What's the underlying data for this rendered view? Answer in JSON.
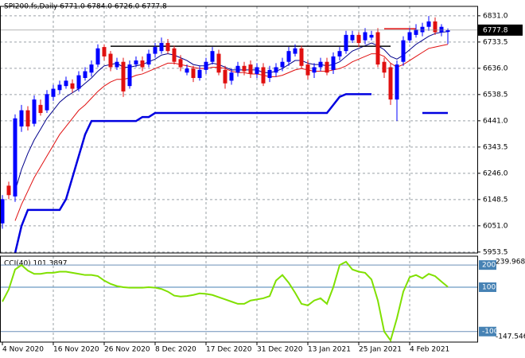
{
  "chart_data": [
    {
      "type": "candlestick",
      "title": "SPI200.fs,Daily  6771.0 6784.0 6726.0 6777.8",
      "up_color": "#0000ff",
      "down_color": "#e01010",
      "categories": [
        "4 Nov 2020",
        null,
        null,
        null,
        null,
        null,
        null,
        null,
        "16 Nov 2020",
        null,
        null,
        null,
        null,
        null,
        null,
        null,
        "26 Nov 2020",
        null,
        null,
        null,
        null,
        null,
        null,
        null,
        "8 Dec 2020",
        null,
        null,
        null,
        null,
        null,
        null,
        null,
        "17 Dec 2020",
        null,
        null,
        null,
        null,
        null,
        null,
        null,
        "31 Dec 2020",
        null,
        null,
        null,
        null,
        null,
        null,
        null,
        "13 Jan 2021",
        null,
        null,
        null,
        null,
        null,
        null,
        null,
        "25 Jan 2021",
        null,
        null,
        null,
        null,
        null,
        null,
        null,
        "4 Feb 2021",
        null,
        null,
        null,
        null,
        null,
        null
      ],
      "open": [
        6060,
        6200,
        6160,
        6420,
        6480,
        6430,
        6500,
        6480,
        6530,
        6555,
        6570,
        6580,
        6560,
        6600,
        6620,
        6650,
        6715,
        6690,
        6640,
        6660,
        6570,
        6650,
        6665,
        6650,
        6690,
        6700,
        6730,
        6710,
        6670,
        6620,
        6635,
        6600,
        6630,
        6660,
        6690,
        6630,
        6590,
        6620,
        6645,
        6650,
        6615,
        6640,
        6600,
        6620,
        6640,
        6660,
        6690,
        6710,
        6650,
        6620,
        6640,
        6660,
        6630,
        6680,
        6700,
        6740,
        6760,
        6740,
        6750,
        6770,
        6660,
        6640,
        6520,
        6660,
        6740,
        6760,
        6770,
        6790,
        6810,
        6770,
        6771
      ],
      "high": [
        6165,
        6215,
        6465,
        6500,
        6495,
        6535,
        6520,
        6555,
        6575,
        6590,
        6605,
        6595,
        6625,
        6640,
        6665,
        6725,
        6725,
        6700,
        6675,
        6675,
        6665,
        6680,
        6680,
        6705,
        6730,
        6750,
        6745,
        6720,
        6685,
        6650,
        6645,
        6645,
        6675,
        6715,
        6705,
        6645,
        6635,
        6660,
        6660,
        6665,
        6655,
        6655,
        6645,
        6655,
        6675,
        6715,
        6725,
        6720,
        6665,
        6655,
        6675,
        6675,
        6695,
        6715,
        6775,
        6775,
        6770,
        6785,
        6775,
        6785,
        6675,
        6655,
        6665,
        6755,
        6785,
        6800,
        6805,
        6830,
        6825,
        6800,
        6784
      ],
      "low": [
        6040,
        6150,
        6140,
        6400,
        6405,
        6420,
        6460,
        6470,
        6515,
        6540,
        6560,
        6545,
        6550,
        6590,
        6605,
        6640,
        6665,
        6625,
        6630,
        6530,
        6560,
        6640,
        6625,
        6640,
        6675,
        6690,
        6690,
        6650,
        6625,
        6610,
        6585,
        6590,
        6615,
        6650,
        6610,
        6560,
        6575,
        6605,
        6610,
        6600,
        6600,
        6570,
        6585,
        6605,
        6625,
        6645,
        6680,
        6635,
        6595,
        6600,
        6625,
        6610,
        6615,
        6665,
        6690,
        6730,
        6715,
        6725,
        6740,
        6640,
        6600,
        6500,
        6440,
        6645,
        6730,
        6750,
        6755,
        6775,
        6760,
        6755,
        6726
      ],
      "close": [
        6150,
        6165,
        6450,
        6480,
        6420,
        6520,
        6470,
        6540,
        6560,
        6575,
        6590,
        6560,
        6610,
        6625,
        6650,
        6710,
        6680,
        6640,
        6660,
        6550,
        6650,
        6665,
        6640,
        6690,
        6715,
        6730,
        6700,
        6660,
        6640,
        6635,
        6600,
        6630,
        6660,
        6700,
        6620,
        6580,
        6620,
        6645,
        6625,
        6615,
        6640,
        6580,
        6630,
        6640,
        6660,
        6700,
        6710,
        6645,
        6610,
        6640,
        6660,
        6620,
        6680,
        6700,
        6760,
        6760,
        6730,
        6770,
        6760,
        6650,
        6620,
        6520,
        6650,
        6740,
        6770,
        6780,
        6790,
        6810,
        6770,
        6790,
        6777.8
      ],
      "series": [
        {
          "color": "#00008b",
          "width": 1,
          "values": [
            null,
            null,
            6180,
            6260,
            6320,
            6370,
            6410,
            6450,
            6480,
            6510,
            6530,
            6545,
            6560,
            6580,
            6600,
            6625,
            6645,
            6650,
            6655,
            6640,
            6640,
            6645,
            6650,
            6660,
            6670,
            6685,
            6690,
            6685,
            6675,
            6665,
            6650,
            6645,
            6645,
            6655,
            6650,
            6640,
            6630,
            6630,
            6630,
            6630,
            6630,
            6620,
            6620,
            6625,
            6635,
            6650,
            6665,
            6665,
            6655,
            6650,
            6650,
            6645,
            6650,
            6660,
            6680,
            6700,
            6710,
            6720,
            6730,
            6720,
            6705,
            6680,
            6670,
            6685,
            6705,
            6725,
            6740,
            6755,
            6765,
            6770,
            6772
          ]
        },
        {
          "color": "#e01010",
          "width": 1,
          "values": [
            null,
            null,
            6070,
            6130,
            6180,
            6230,
            6270,
            6310,
            6350,
            6390,
            6420,
            6450,
            6480,
            6500,
            6525,
            6550,
            6570,
            6585,
            6595,
            6595,
            6600,
            6610,
            6615,
            6625,
            6635,
            6645,
            6655,
            6655,
            6650,
            6645,
            6640,
            6635,
            6635,
            6640,
            6640,
            6635,
            6625,
            6620,
            6620,
            6615,
            6615,
            6610,
            6605,
            6605,
            6610,
            6620,
            6630,
            6635,
            6630,
            6625,
            6625,
            6625,
            6630,
            6635,
            6645,
            6660,
            6670,
            6680,
            6690,
            6690,
            6680,
            6655,
            6640,
            6650,
            6665,
            6680,
            6695,
            6710,
            6715,
            6720,
            6725
          ]
        },
        {
          "color": "#0000e0",
          "width": 2.5,
          "values": [
            null,
            null,
            5950,
            6050,
            6110,
            6110,
            6110,
            6110,
            6110,
            6110,
            6150,
            6230,
            6310,
            6390,
            6440,
            6440,
            6440,
            6440,
            6440,
            6440,
            6440,
            6440,
            6455,
            6455,
            6470,
            6470,
            6470,
            6470,
            6470,
            6470,
            6470,
            6470,
            6470,
            6470,
            6470,
            6470,
            6470,
            6470,
            6470,
            6470,
            6470,
            6470,
            6470,
            6470,
            6470,
            6470,
            6470,
            6470,
            6470,
            6470,
            6470,
            6470,
            6500,
            6530,
            6540,
            6540,
            6540,
            6540,
            6540,
            null,
            null,
            null,
            null,
            null,
            null,
            null,
            6470,
            6470,
            6470,
            6470,
            6470
          ]
        }
      ],
      "hlines": [
        {
          "value": 6718,
          "from": 17,
          "to": 61,
          "color": "#000000"
        },
        {
          "value": 6783,
          "from": 60,
          "to": 65,
          "color": "#e01010"
        }
      ],
      "ylim": [
        5950,
        6866
      ],
      "yticks": [
        {
          "value": 6831,
          "label": "6831.0"
        },
        {
          "value": 6733.5,
          "label": "6733.5"
        },
        {
          "value": 6636,
          "label": "6636.0"
        },
        {
          "value": 6538.5,
          "label": "6538.5"
        },
        {
          "value": 6441,
          "label": "6441.0"
        },
        {
          "value": 6343.5,
          "label": "6343.5"
        },
        {
          "value": 6246,
          "label": "6246.0"
        },
        {
          "value": 6148.5,
          "label": "6148.5"
        },
        {
          "value": 6051,
          "label": "6051.0"
        },
        {
          "value": 5953.5,
          "label": "5953.5"
        }
      ],
      "grid": true
    },
    {
      "type": "line",
      "title": "CCI(40) 101.3897",
      "color": "#80e000",
      "values": [
        35,
        90,
        180,
        200,
        175,
        160,
        160,
        165,
        165,
        170,
        170,
        165,
        160,
        155,
        155,
        150,
        130,
        115,
        105,
        100,
        98,
        98,
        98,
        100,
        98,
        92,
        80,
        62,
        58,
        60,
        65,
        72,
        70,
        65,
        55,
        45,
        35,
        25,
        25,
        40,
        45,
        50,
        60,
        130,
        155,
        120,
        75,
        25,
        18,
        40,
        50,
        25,
        100,
        200,
        215,
        180,
        170,
        165,
        135,
        40,
        -100,
        -140,
        -40,
        80,
        145,
        155,
        140,
        160,
        150,
        125,
        101.3897
      ],
      "ylim": [
        -147.546,
        239.9682
      ],
      "yticks": [
        200,
        100,
        -100
      ],
      "level": 100
    }
  ]
}
